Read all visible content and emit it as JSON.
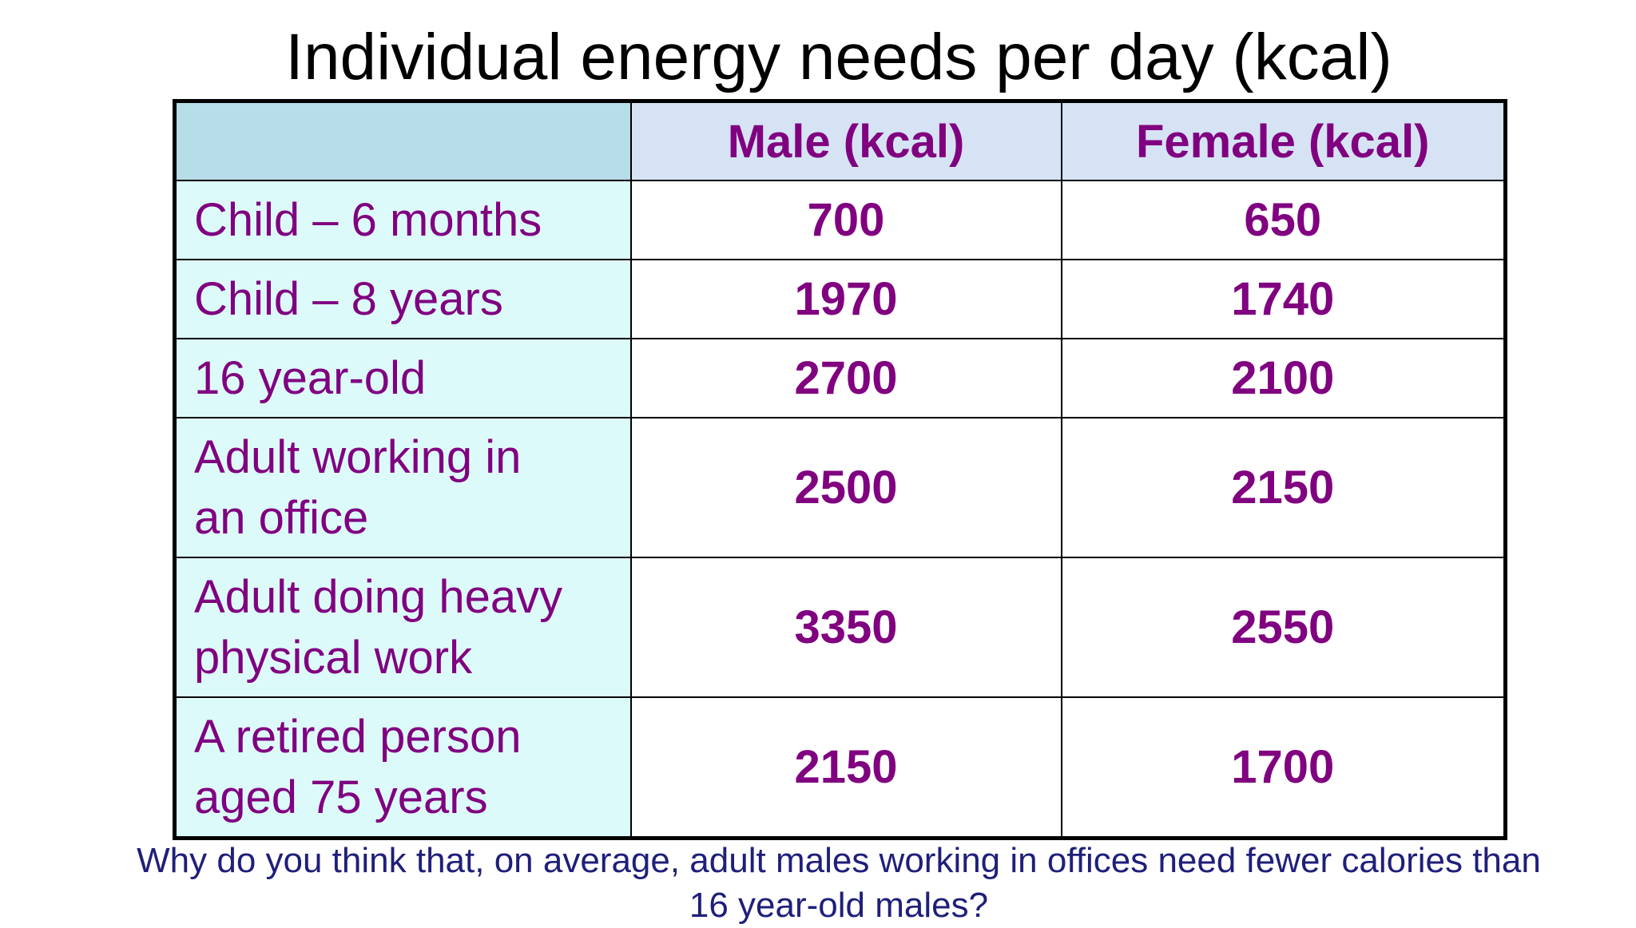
{
  "title": "Individual energy needs per day (kcal)",
  "table": {
    "headers": [
      "",
      "Male (kcal)",
      "Female (kcal)"
    ],
    "rows": [
      {
        "label": "Child – 6 months",
        "male": "700",
        "female": "650"
      },
      {
        "label": "Child – 8 years",
        "male": "1970",
        "female": "1740"
      },
      {
        "label": "16 year-old",
        "male": "2700",
        "female": "2100"
      },
      {
        "label_line1": "Adult working in",
        "label_line2": "an office",
        "male": "2500",
        "female": "2150"
      },
      {
        "label_line1": "Adult doing heavy",
        "label_line2": "physical work",
        "male": "3350",
        "female": "2550"
      },
      {
        "label_line1": "A retired person",
        "label_line2": "aged 75 years",
        "male": "2150",
        "female": "1700"
      }
    ]
  },
  "question": {
    "line1": "Why do you think that, on average, adult males working in offices need fewer calories than",
    "line2": "16 year-old males?"
  },
  "colors": {
    "text_purple": "#800080",
    "header_bg": "#d6e3f5",
    "label_bg": "#ddfafa",
    "corner_bg": "#b6dde8",
    "question_text": "#1f1f7a"
  }
}
